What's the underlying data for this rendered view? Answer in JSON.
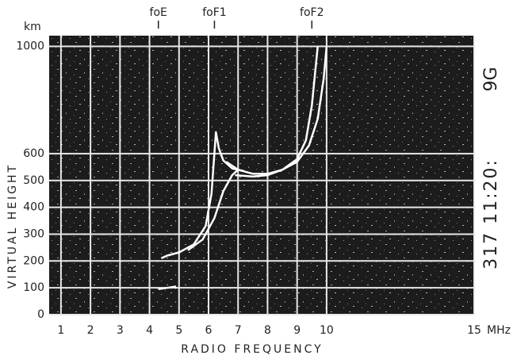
{
  "chart_data": {
    "type": "line",
    "xlabel": "RADIO FREQUENCY",
    "ylabel": "VIRTUAL HEIGHT",
    "x_unit": "MHz",
    "y_unit": "km",
    "xlim": [
      0.6,
      15
    ],
    "ylim": [
      0,
      1040
    ],
    "xticks": [
      1,
      2,
      3,
      4,
      5,
      6,
      7,
      8,
      9,
      10,
      15
    ],
    "yticks": [
      0,
      100,
      200,
      300,
      400,
      500,
      600,
      1000
    ],
    "grid": true,
    "annotations": [
      {
        "text": "foE",
        "x": 4.3
      },
      {
        "text": "foF1",
        "x": 6.2
      },
      {
        "text": "foF2",
        "x": 9.5
      }
    ],
    "side_labels": [
      "9G",
      "317 11:20:"
    ],
    "series": [
      {
        "color": "#ffffff",
        "x": [
          4.3,
          4.6,
          4.9
        ],
        "values": [
          95,
          100,
          105
        ]
      },
      {
        "color": "#ffffff",
        "x": [
          4.4,
          4.6,
          5.0,
          5.5,
          5.9,
          6.1,
          6.25,
          6.35,
          6.5,
          6.8,
          7.2
        ],
        "values": [
          210,
          220,
          232,
          262,
          330,
          450,
          680,
          620,
          575,
          545,
          535
        ]
      },
      {
        "color": "#ffffff",
        "x": [
          5.3,
          5.8,
          6.2,
          6.5,
          6.8,
          7.0
        ],
        "values": [
          240,
          280,
          360,
          460,
          520,
          540
        ]
      },
      {
        "color": "#ffffff",
        "x": [
          6.6,
          7.0,
          7.5,
          8.0,
          8.5,
          9.0,
          9.4,
          9.7,
          9.9,
          10.0
        ],
        "values": [
          570,
          540,
          525,
          525,
          540,
          570,
          630,
          730,
          880,
          1000
        ]
      },
      {
        "color": "#ffffff",
        "x": [
          6.9,
          7.5,
          8.0,
          8.5,
          9.0,
          9.3,
          9.5,
          9.7
        ],
        "values": [
          520,
          515,
          520,
          540,
          580,
          650,
          780,
          1000
        ]
      }
    ]
  }
}
